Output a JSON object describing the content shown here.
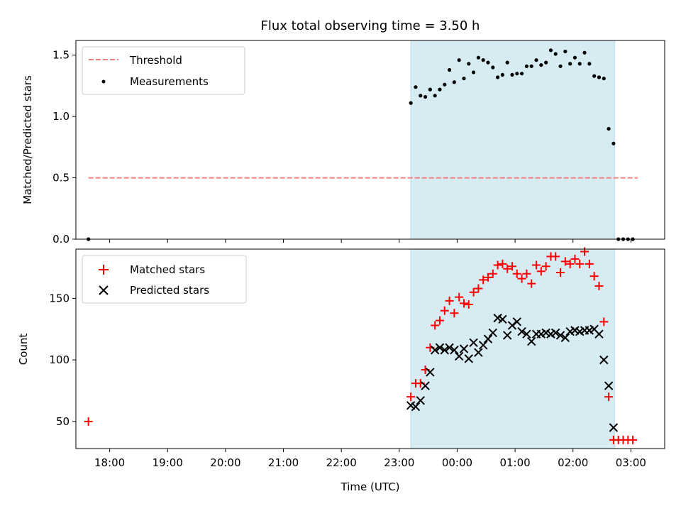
{
  "chart_data": [
    {
      "type": "scatter",
      "title": "Flux total observing time = 3.50 h",
      "xlabel": "",
      "ylabel": "Matched/Predicted stars",
      "ylim": [
        0,
        1.62
      ],
      "yticks": [
        0.0,
        0.5,
        1.0,
        1.5
      ],
      "ytick_labels": [
        "0.0",
        "0.5",
        "1.0",
        "1.5"
      ],
      "xlim": [
        "17:25",
        "23:35+1:00"
      ],
      "shaded_interval": {
        "start": "23:12",
        "end": "02:43",
        "color": "#add8e6"
      },
      "legend": {
        "placement": "upper left",
        "entries": [
          "Threshold",
          "Measurements"
        ]
      },
      "threshold": {
        "name": "Threshold",
        "y": 0.5,
        "x_start": "17:38",
        "x_end": "03:07",
        "color": "#f08080",
        "style": "dashed"
      },
      "series": [
        {
          "name": "Measurements",
          "color": "#000000",
          "marker": "dot",
          "points": [
            [
              "17:38",
              0.0
            ],
            [
              "23:12",
              1.11
            ],
            [
              "23:17",
              1.24
            ],
            [
              "23:22",
              1.17
            ],
            [
              "23:27",
              1.16
            ],
            [
              "23:32",
              1.22
            ],
            [
              "23:37",
              1.17
            ],
            [
              "23:42",
              1.22
            ],
            [
              "23:47",
              1.26
            ],
            [
              "23:52",
              1.38
            ],
            [
              "23:57",
              1.28
            ],
            [
              "00:02",
              1.46
            ],
            [
              "00:07",
              1.31
            ],
            [
              "00:12",
              1.43
            ],
            [
              "00:17",
              1.36
            ],
            [
              "00:22",
              1.48
            ],
            [
              "00:27",
              1.46
            ],
            [
              "00:32",
              1.44
            ],
            [
              "00:37",
              1.4
            ],
            [
              "00:42",
              1.32
            ],
            [
              "00:47",
              1.34
            ],
            [
              "00:52",
              1.44
            ],
            [
              "00:57",
              1.34
            ],
            [
              "01:02",
              1.35
            ],
            [
              "01:07",
              1.35
            ],
            [
              "01:12",
              1.41
            ],
            [
              "01:17",
              1.41
            ],
            [
              "01:22",
              1.46
            ],
            [
              "01:27",
              1.42
            ],
            [
              "01:32",
              1.44
            ],
            [
              "01:37",
              1.54
            ],
            [
              "01:42",
              1.51
            ],
            [
              "01:47",
              1.41
            ],
            [
              "01:52",
              1.53
            ],
            [
              "01:57",
              1.43
            ],
            [
              "02:02",
              1.48
            ],
            [
              "02:07",
              1.43
            ],
            [
              "02:12",
              1.52
            ],
            [
              "02:17",
              1.43
            ],
            [
              "02:22",
              1.33
            ],
            [
              "02:27",
              1.32
            ],
            [
              "02:32",
              1.31
            ],
            [
              "02:37",
              0.9
            ],
            [
              "02:42",
              0.78
            ],
            [
              "02:47",
              0.0
            ],
            [
              "02:52",
              0.0
            ],
            [
              "02:57",
              0.0
            ],
            [
              "03:02",
              0.0
            ]
          ]
        }
      ]
    },
    {
      "type": "scatter",
      "title": "",
      "xlabel": "Time (UTC)",
      "ylabel": "Count",
      "ylim": [
        28,
        190
      ],
      "yticks": [
        50,
        100,
        150
      ],
      "ytick_labels": [
        "50",
        "100",
        "150"
      ],
      "xticks": [
        "18:00",
        "19:00",
        "20:00",
        "21:00",
        "22:00",
        "23:00",
        "00:00",
        "01:00",
        "02:00",
        "03:00"
      ],
      "shaded_interval": {
        "start": "23:12",
        "end": "02:43",
        "color": "#add8e6"
      },
      "legend": {
        "placement": "upper left",
        "entries": [
          "Matched stars",
          "Predicted stars"
        ]
      },
      "series": [
        {
          "name": "Matched stars",
          "color": "#ff0000",
          "marker": "plus",
          "points": [
            [
              "17:38",
              50
            ],
            [
              "23:12",
              70
            ],
            [
              "23:17",
              81
            ],
            [
              "23:22",
              81
            ],
            [
              "23:27",
              92
            ],
            [
              "23:32",
              110
            ],
            [
              "23:37",
              128
            ],
            [
              "23:42",
              132
            ],
            [
              "23:47",
              140
            ],
            [
              "23:52",
              148
            ],
            [
              "23:57",
              138
            ],
            [
              "00:02",
              151
            ],
            [
              "00:07",
              146
            ],
            [
              "00:12",
              145
            ],
            [
              "00:17",
              155
            ],
            [
              "00:22",
              158
            ],
            [
              "00:27",
              165
            ],
            [
              "00:32",
              167
            ],
            [
              "00:37",
              170
            ],
            [
              "00:42",
              177
            ],
            [
              "00:47",
              178
            ],
            [
              "00:52",
              174
            ],
            [
              "00:57",
              176
            ],
            [
              "01:02",
              170
            ],
            [
              "01:07",
              166
            ],
            [
              "01:12",
              170
            ],
            [
              "01:17",
              162
            ],
            [
              "01:22",
              177
            ],
            [
              "01:27",
              172
            ],
            [
              "01:32",
              176
            ],
            [
              "01:37",
              184
            ],
            [
              "01:42",
              184
            ],
            [
              "01:47",
              171
            ],
            [
              "01:52",
              180
            ],
            [
              "01:57",
              178
            ],
            [
              "02:02",
              182
            ],
            [
              "02:07",
              178
            ],
            [
              "02:12",
              188
            ],
            [
              "02:17",
              178
            ],
            [
              "02:22",
              168
            ],
            [
              "02:27",
              160
            ],
            [
              "02:32",
              131
            ],
            [
              "02:37",
              70
            ],
            [
              "02:42",
              35
            ],
            [
              "02:47",
              35
            ],
            [
              "02:52",
              35
            ],
            [
              "02:57",
              35
            ],
            [
              "03:02",
              35
            ]
          ]
        },
        {
          "name": "Predicted stars",
          "color": "#000000",
          "marker": "x",
          "points": [
            [
              "23:12",
              63
            ],
            [
              "23:17",
              62
            ],
            [
              "23:22",
              67
            ],
            [
              "23:27",
              79
            ],
            [
              "23:32",
              90
            ],
            [
              "23:37",
              108
            ],
            [
              "23:42",
              110
            ],
            [
              "23:47",
              108
            ],
            [
              "23:52",
              110
            ],
            [
              "23:57",
              108
            ],
            [
              "00:02",
              103
            ],
            [
              "00:07",
              109
            ],
            [
              "00:12",
              101
            ],
            [
              "00:17",
              114
            ],
            [
              "00:22",
              106
            ],
            [
              "00:27",
              112
            ],
            [
              "00:32",
              117
            ],
            [
              "00:37",
              122
            ],
            [
              "00:42",
              134
            ],
            [
              "00:47",
              133
            ],
            [
              "00:52",
              120
            ],
            [
              "00:57",
              128
            ],
            [
              "01:02",
              131
            ],
            [
              "01:07",
              123
            ],
            [
              "01:12",
              121
            ],
            [
              "01:17",
              115
            ],
            [
              "01:22",
              121
            ],
            [
              "01:27",
              121
            ],
            [
              "01:32",
              122
            ],
            [
              "01:37",
              121
            ],
            [
              "01:42",
              122
            ],
            [
              "01:47",
              120
            ],
            [
              "01:52",
              118
            ],
            [
              "01:57",
              123
            ],
            [
              "02:02",
              124
            ],
            [
              "02:07",
              123
            ],
            [
              "02:12",
              124
            ],
            [
              "02:17",
              124
            ],
            [
              "02:22",
              125
            ],
            [
              "02:27",
              121
            ],
            [
              "02:32",
              100
            ],
            [
              "02:37",
              79
            ],
            [
              "02:42",
              45
            ]
          ]
        }
      ]
    }
  ]
}
